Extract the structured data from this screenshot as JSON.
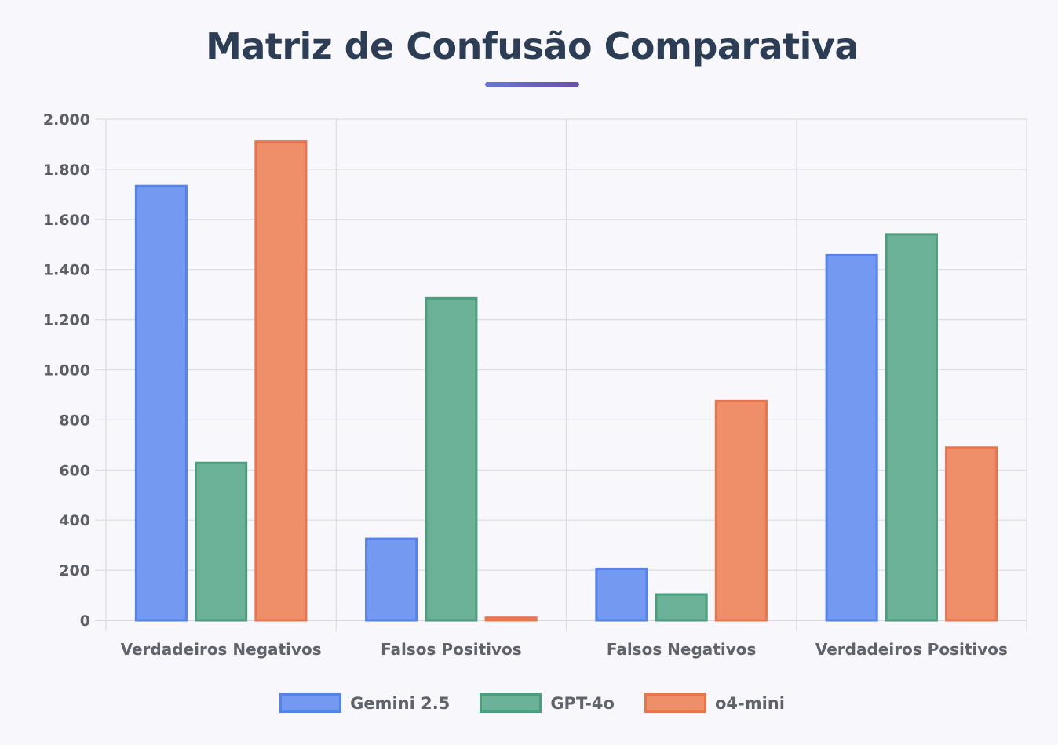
{
  "title": "Matriz de Confusão Comparativa",
  "chart_data": {
    "type": "bar",
    "title": "Matriz de Confusão Comparativa",
    "categories": [
      "Verdadeiros Negativos",
      "Falsos Positivos",
      "Falsos Negativos",
      "Verdadeiros Positivos"
    ],
    "series": [
      {
        "name": "Gemini 2.5",
        "values": [
          1738,
          330,
          210,
          1462
        ],
        "color": "#7499f0",
        "border": "#5483ec"
      },
      {
        "name": "GPT-4o",
        "values": [
          633,
          1290,
          108,
          1545
        ],
        "color": "#6bb298",
        "border": "#4c9e7d"
      },
      {
        "name": "o4-mini",
        "values": [
          1915,
          15,
          880,
          694
        ],
        "color": "#ef8f69",
        "border": "#ea744b"
      }
    ],
    "ylim": [
      0,
      2000
    ],
    "yticks": [
      0,
      200,
      400,
      600,
      800,
      1000,
      1200,
      1400,
      1600,
      1800,
      2000
    ],
    "ytick_labels": [
      "0",
      "200",
      "400",
      "600",
      "800",
      "1.000",
      "1.200",
      "1.400",
      "1.600",
      "1.800",
      "2.000"
    ],
    "xlabel": "",
    "ylabel": "",
    "grid": true,
    "legend_position": "bottom"
  }
}
